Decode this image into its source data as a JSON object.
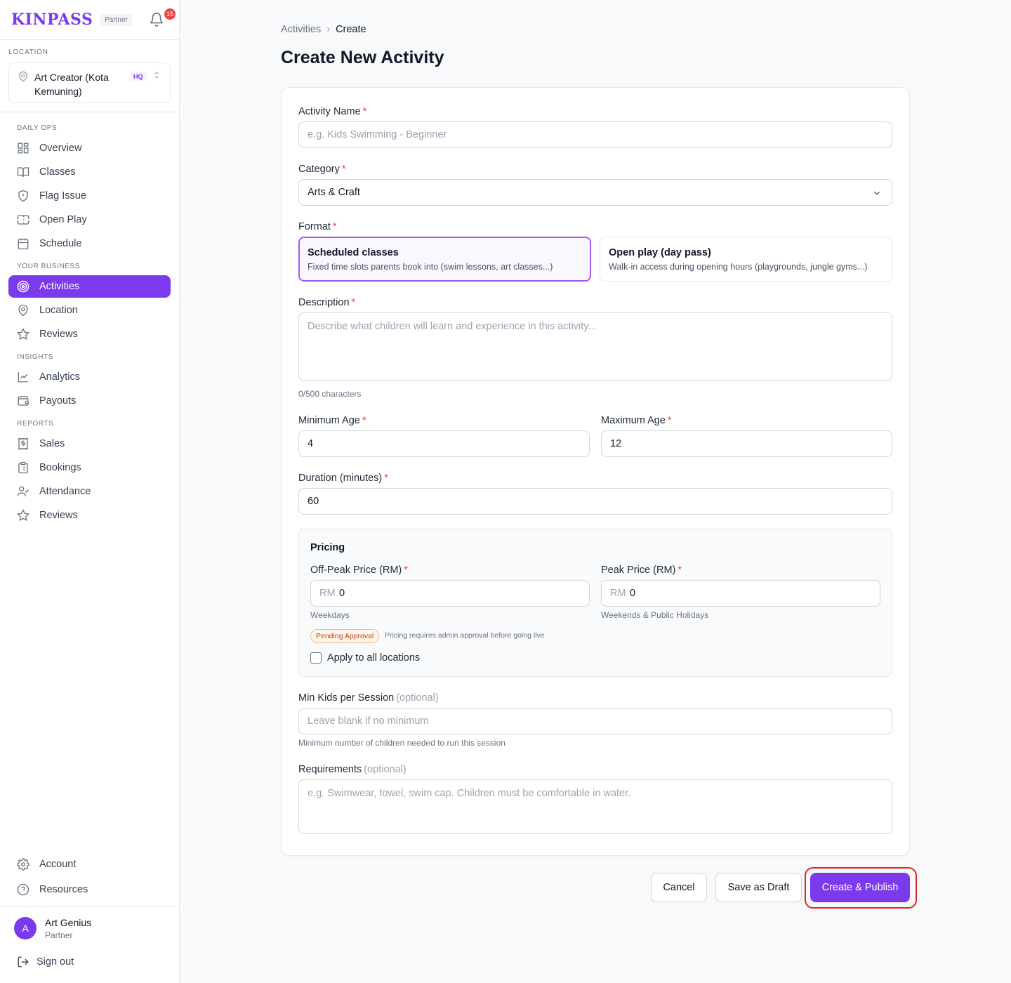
{
  "brand": {
    "logo": "KINPASS",
    "tag": "Partner",
    "notifications": "15"
  },
  "location": {
    "label": "LOCATION",
    "name": "Art Creator (Kota Kemuning)",
    "badge": "HQ"
  },
  "sidebar": {
    "sections": [
      "DAILY OPS",
      "YOUR BUSINESS",
      "INSIGHTS",
      "REPORTS"
    ],
    "items": [
      {
        "label": "Overview",
        "icon": "grid-icon"
      },
      {
        "label": "Classes",
        "icon": "book-icon"
      },
      {
        "label": "Flag Issue",
        "icon": "shield-alert-icon"
      },
      {
        "label": "Open Play",
        "icon": "ticket-icon"
      },
      {
        "label": "Schedule",
        "icon": "calendar-icon"
      },
      {
        "label": "Activities",
        "icon": "target-icon",
        "active": true
      },
      {
        "label": "Location",
        "icon": "map-pin-icon"
      },
      {
        "label": "Reviews",
        "icon": "star-icon"
      },
      {
        "label": "Analytics",
        "icon": "line-chart-icon"
      },
      {
        "label": "Payouts",
        "icon": "wallet-icon"
      },
      {
        "label": "Sales",
        "icon": "dollar-receipt-icon"
      },
      {
        "label": "Bookings",
        "icon": "clipboard-icon"
      },
      {
        "label": "Attendance",
        "icon": "user-check-icon"
      },
      {
        "label": "Reviews",
        "icon": "star-icon"
      }
    ],
    "footer": [
      {
        "label": "Account",
        "icon": "gear-icon"
      },
      {
        "label": "Resources",
        "icon": "help-circle-icon"
      }
    ]
  },
  "user": {
    "initial": "A",
    "name": "Art Genius",
    "role": "Partner",
    "signout": "Sign out"
  },
  "breadcrumb": {
    "parent": "Activities",
    "separator": "›",
    "current": "Create"
  },
  "page": {
    "title": "Create New Activity"
  },
  "form": {
    "activity_name": {
      "label": "Activity Name",
      "placeholder": "e.g. Kids Swimming - Beginner",
      "value": ""
    },
    "category": {
      "label": "Category",
      "value": "Arts & Craft"
    },
    "format": {
      "label": "Format",
      "options": [
        {
          "title": "Scheduled classes",
          "desc": "Fixed time slots parents book into (swim lessons, art classes...)",
          "selected": true
        },
        {
          "title": "Open play (day pass)",
          "desc": "Walk-in access during opening hours (playgrounds, jungle gyms...)",
          "selected": false
        }
      ]
    },
    "description": {
      "label": "Description",
      "placeholder": "Describe what children will learn and experience in this activity...",
      "counter": "0/500 characters"
    },
    "min_age": {
      "label": "Minimum Age",
      "value": "4"
    },
    "max_age": {
      "label": "Maximum Age",
      "value": "12"
    },
    "duration": {
      "label": "Duration (minutes)",
      "value": "60"
    },
    "pricing": {
      "title": "Pricing",
      "offpeak": {
        "label": "Off-Peak Price (RM)",
        "prefix": "RM",
        "value": "0",
        "help": "Weekdays"
      },
      "peak": {
        "label": "Peak Price (RM)",
        "prefix": "RM",
        "value": "0",
        "help": "Weekends & Public Holidays"
      },
      "status_badge": "Pending Approval",
      "status_note": "Pricing requires admin approval before going live",
      "apply_all": "Apply to all locations"
    },
    "min_kids": {
      "label": "Min Kids per Session",
      "optional": "(optional)",
      "placeholder": "Leave blank if no minimum",
      "help": "Minimum number of children needed to run this session"
    },
    "requirements": {
      "label": "Requirements",
      "optional": "(optional)",
      "placeholder": "e.g. Swimwear, towel, swim cap. Children must be comfortable in water."
    },
    "required_mark": "*"
  },
  "actions": {
    "cancel": "Cancel",
    "draft": "Save as Draft",
    "publish": "Create & Publish"
  },
  "colors": {
    "accent": "#7c3aed",
    "required": "#ef4444",
    "highlight": "#dc2626"
  }
}
